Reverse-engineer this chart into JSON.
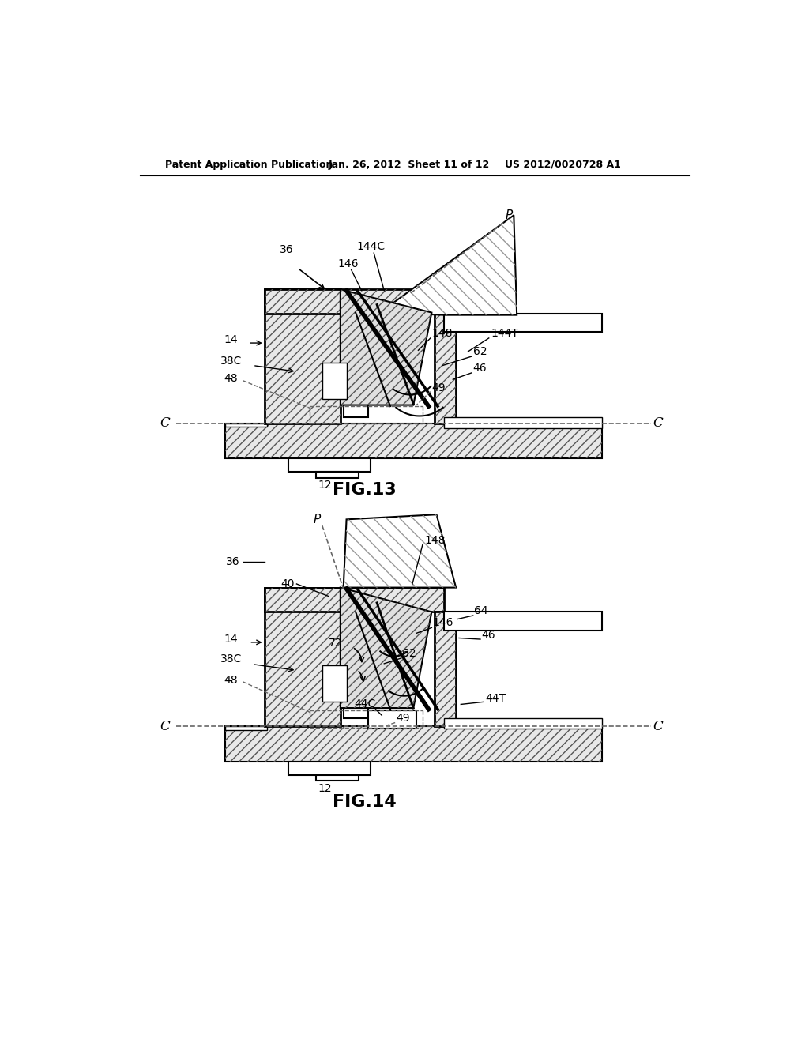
{
  "bg_color": "#ffffff",
  "header_text": "Patent Application Publication",
  "header_date": "Jan. 26, 2012  Sheet 11 of 12",
  "header_patent": "US 2012/0020728 A1",
  "fig13_title": "FIG.13",
  "fig14_title": "FIG.14",
  "hatch_color": "#555555",
  "line_color": "#000000",
  "dashed_color": "#666666"
}
